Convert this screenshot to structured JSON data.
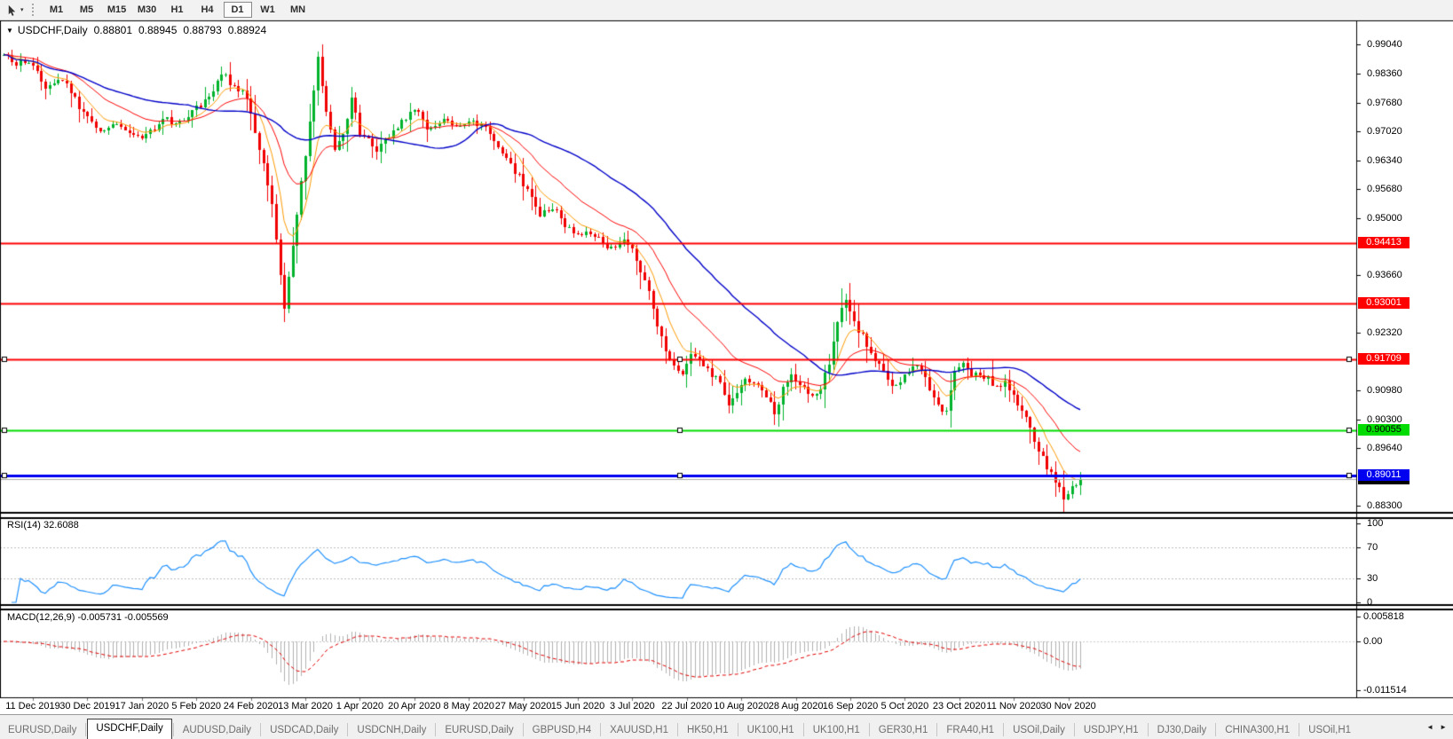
{
  "icons": {
    "toolbar_caret": "▾",
    "title_caret": "▼",
    "scroll_left": "◄",
    "scroll_right": "►"
  },
  "toolbar": {
    "timeframes": [
      "M1",
      "M5",
      "M15",
      "M30",
      "H1",
      "H4",
      "D1",
      "W1",
      "MN"
    ],
    "active": "D1"
  },
  "chart": {
    "title": {
      "symbol": "USDCHF,Daily",
      "open": "0.88801",
      "high": "0.88945",
      "low": "0.88793",
      "close": "0.88924"
    },
    "price_axis_ticks": [
      "0.99040",
      "0.98360",
      "0.97680",
      "0.97020",
      "0.96340",
      "0.95680",
      "0.95000",
      "0.93660",
      "0.92320",
      "0.90980",
      "0.90300",
      "0.89640",
      "0.88300"
    ],
    "hlines": [
      {
        "price": 0.94413,
        "label": "0.94413",
        "color": "#fe0000",
        "width": 2,
        "label_bg": "#fe0000",
        "label_fg": "#ffffff",
        "selected": false
      },
      {
        "price": 0.93001,
        "label": "0.93001",
        "color": "#fe0000",
        "width": 2,
        "label_bg": "#fe0000",
        "label_fg": "#ffffff",
        "selected": false
      },
      {
        "price": 0.91709,
        "label": "0.91709",
        "color": "#fe0000",
        "width": 2,
        "label_bg": "#fe0000",
        "label_fg": "#ffffff",
        "selected": true
      },
      {
        "price": 0.90055,
        "label": "0.90055",
        "color": "#00dc00",
        "width": 2,
        "label_bg": "#00dc00",
        "label_fg": "#000000",
        "selected": true
      },
      {
        "price": 0.89011,
        "label": "0.89011",
        "color": "#0000f0",
        "width": 3,
        "label_bg": "#0000f0",
        "label_fg": "#ffffff",
        "selected": true
      }
    ],
    "current_price": {
      "value": 0.88924,
      "label": "0.88924",
      "line_color": "#a8a8a8",
      "label_bg": "#000000",
      "label_fg": "#ffffff"
    },
    "dates": [
      "11 Dec 2019",
      "30 Dec 2019",
      "17 Jan 2020",
      "5 Feb 2020",
      "24 Feb 2020",
      "13 Mar 2020",
      "1 Apr 2020",
      "20 Apr 2020",
      "8 May 2020",
      "27 May 2020",
      "15 Jun 2020",
      "3 Jul 2020",
      "22 Jul 2020",
      "10 Aug 2020",
      "28 Aug 2020",
      "16 Sep 2020",
      "5 Oct 2020",
      "23 Oct 2020",
      "11 Nov 2020",
      "30 Nov 2020"
    ]
  },
  "rsi": {
    "label": "RSI(14) 32.6088",
    "period": 14,
    "value": 32.6088,
    "axis_ticks": [
      100,
      70,
      30,
      0
    ],
    "levels": [
      70,
      30
    ],
    "color": "#1e90ff",
    "level_color": "#bdbdbd"
  },
  "macd": {
    "label": "MACD(12,26,9) -0.005731 -0.005569",
    "fast": 12,
    "slow": 26,
    "signal_period": 9,
    "main_value": -0.005731,
    "signal_value": -0.005569,
    "axis_ticks": [
      "0.005818",
      "0.00",
      "-0.011514"
    ],
    "hist_color": "#b0b0b0",
    "signal_color": "#e00000",
    "zero_color": "#c9c9c9"
  },
  "chart_data": {
    "type": "candlestick",
    "symbol": "USDCHF",
    "timeframe": "Daily",
    "last_ohlc": {
      "open": 0.88801,
      "high": 0.88945,
      "low": 0.88793,
      "close": 0.88924
    },
    "num_candles": 258,
    "price_range_visible": [
      0.8816,
      0.9958
    ],
    "close_waypoints": [
      [
        0,
        0.988
      ],
      [
        3,
        0.9862
      ],
      [
        7,
        0.9855
      ],
      [
        10,
        0.98
      ],
      [
        13,
        0.9825
      ],
      [
        15,
        0.9812
      ],
      [
        18,
        0.976
      ],
      [
        20,
        0.973
      ],
      [
        23,
        0.97
      ],
      [
        27,
        0.9722
      ],
      [
        30,
        0.97
      ],
      [
        32,
        0.9685
      ],
      [
        35,
        0.9702
      ],
      [
        39,
        0.973
      ],
      [
        42,
        0.972
      ],
      [
        45,
        0.9748
      ],
      [
        49,
        0.9782
      ],
      [
        52,
        0.984
      ],
      [
        55,
        0.9806
      ],
      [
        58,
        0.9782
      ],
      [
        60,
        0.97
      ],
      [
        62,
        0.962
      ],
      [
        64,
        0.953
      ],
      [
        66,
        0.936
      ],
      [
        67,
        0.929
      ],
      [
        68,
        0.9365
      ],
      [
        70,
        0.951
      ],
      [
        72,
        0.965
      ],
      [
        74,
        0.98
      ],
      [
        75,
        0.9868
      ],
      [
        77,
        0.975
      ],
      [
        79,
        0.966
      ],
      [
        81,
        0.9692
      ],
      [
        83,
        0.9782
      ],
      [
        85,
        0.97
      ],
      [
        89,
        0.9658
      ],
      [
        92,
        0.9692
      ],
      [
        95,
        0.9722
      ],
      [
        98,
        0.9756
      ],
      [
        101,
        0.971
      ],
      [
        104,
        0.9726
      ],
      [
        107,
        0.9716
      ],
      [
        111,
        0.9726
      ],
      [
        115,
        0.9708
      ],
      [
        119,
        0.9645
      ],
      [
        122,
        0.961
      ],
      [
        125,
        0.9565
      ],
      [
        128,
        0.9505
      ],
      [
        131,
        0.9525
      ],
      [
        134,
        0.948
      ],
      [
        137,
        0.9455
      ],
      [
        140,
        0.9468
      ],
      [
        143,
        0.9442
      ],
      [
        146,
        0.9425
      ],
      [
        148,
        0.9456
      ],
      [
        151,
        0.9405
      ],
      [
        154,
        0.9325
      ],
      [
        156,
        0.9255
      ],
      [
        158,
        0.9185
      ],
      [
        160,
        0.9155
      ],
      [
        162,
        0.9132
      ],
      [
        164,
        0.9185
      ],
      [
        167,
        0.9155
      ],
      [
        169,
        0.9135
      ],
      [
        171,
        0.9112
      ],
      [
        173,
        0.9065
      ],
      [
        175,
        0.9098
      ],
      [
        177,
        0.9126
      ],
      [
        180,
        0.9105
      ],
      [
        182,
        0.9085
      ],
      [
        184,
        0.9045
      ],
      [
        186,
        0.9098
      ],
      [
        188,
        0.9136
      ],
      [
        191,
        0.9106
      ],
      [
        193,
        0.9085
      ],
      [
        195,
        0.9108
      ],
      [
        197,
        0.9158
      ],
      [
        199,
        0.9258
      ],
      [
        201,
        0.9308
      ],
      [
        203,
        0.9255
      ],
      [
        205,
        0.9225
      ],
      [
        207,
        0.9185
      ],
      [
        209,
        0.9155
      ],
      [
        211,
        0.9125
      ],
      [
        213,
        0.9105
      ],
      [
        215,
        0.9138
      ],
      [
        217,
        0.9158
      ],
      [
        219,
        0.9146
      ],
      [
        221,
        0.9106
      ],
      [
        223,
        0.9065
      ],
      [
        225,
        0.9045
      ],
      [
        227,
        0.9138
      ],
      [
        229,
        0.9158
      ],
      [
        231,
        0.9125
      ],
      [
        233,
        0.9138
      ],
      [
        235,
        0.9125
      ],
      [
        237,
        0.9106
      ],
      [
        239,
        0.9116
      ],
      [
        241,
        0.9086
      ],
      [
        243,
        0.9055
      ],
      [
        245,
        0.9006
      ],
      [
        247,
        0.8962
      ],
      [
        249,
        0.892
      ],
      [
        251,
        0.889
      ],
      [
        253,
        0.8845
      ],
      [
        255,
        0.8876
      ],
      [
        257,
        0.8892
      ]
    ],
    "moving_averages": [
      {
        "name": "ma-fast",
        "type": "ema",
        "period": 8,
        "color": "#ff9900"
      },
      {
        "name": "ma-mid",
        "type": "ema",
        "period": 21,
        "color": "#ff0000"
      },
      {
        "name": "ma-slow",
        "type": "sma",
        "period": 45,
        "color": "#0000c8"
      }
    ],
    "colors": {
      "bull": "#00b32c",
      "bear": "#f00000"
    }
  },
  "tabs": {
    "items": [
      {
        "label": "EURUSD,Daily",
        "active": false
      },
      {
        "label": "USDCHF,Daily",
        "active": true
      },
      {
        "label": "AUDUSD,Daily",
        "active": false
      },
      {
        "label": "USDCAD,Daily",
        "active": false
      },
      {
        "label": "USDCNH,Daily",
        "active": false
      },
      {
        "label": "EURUSD,Daily",
        "active": false
      },
      {
        "label": "GBPUSD,H4",
        "active": false
      },
      {
        "label": "XAUUSD,H1",
        "active": false
      },
      {
        "label": "HK50,H1",
        "active": false
      },
      {
        "label": "UK100,H1",
        "active": false
      },
      {
        "label": "UK100,H1",
        "active": false
      },
      {
        "label": "GER30,H1",
        "active": false
      },
      {
        "label": "FRA40,H1",
        "active": false
      },
      {
        "label": "USOil,Daily",
        "active": false
      },
      {
        "label": "USDJPY,H1",
        "active": false
      },
      {
        "label": "DJ30,Daily",
        "active": false
      },
      {
        "label": "CHINA300,H1",
        "active": false
      },
      {
        "label": "USOil,H1",
        "active": false
      }
    ]
  }
}
